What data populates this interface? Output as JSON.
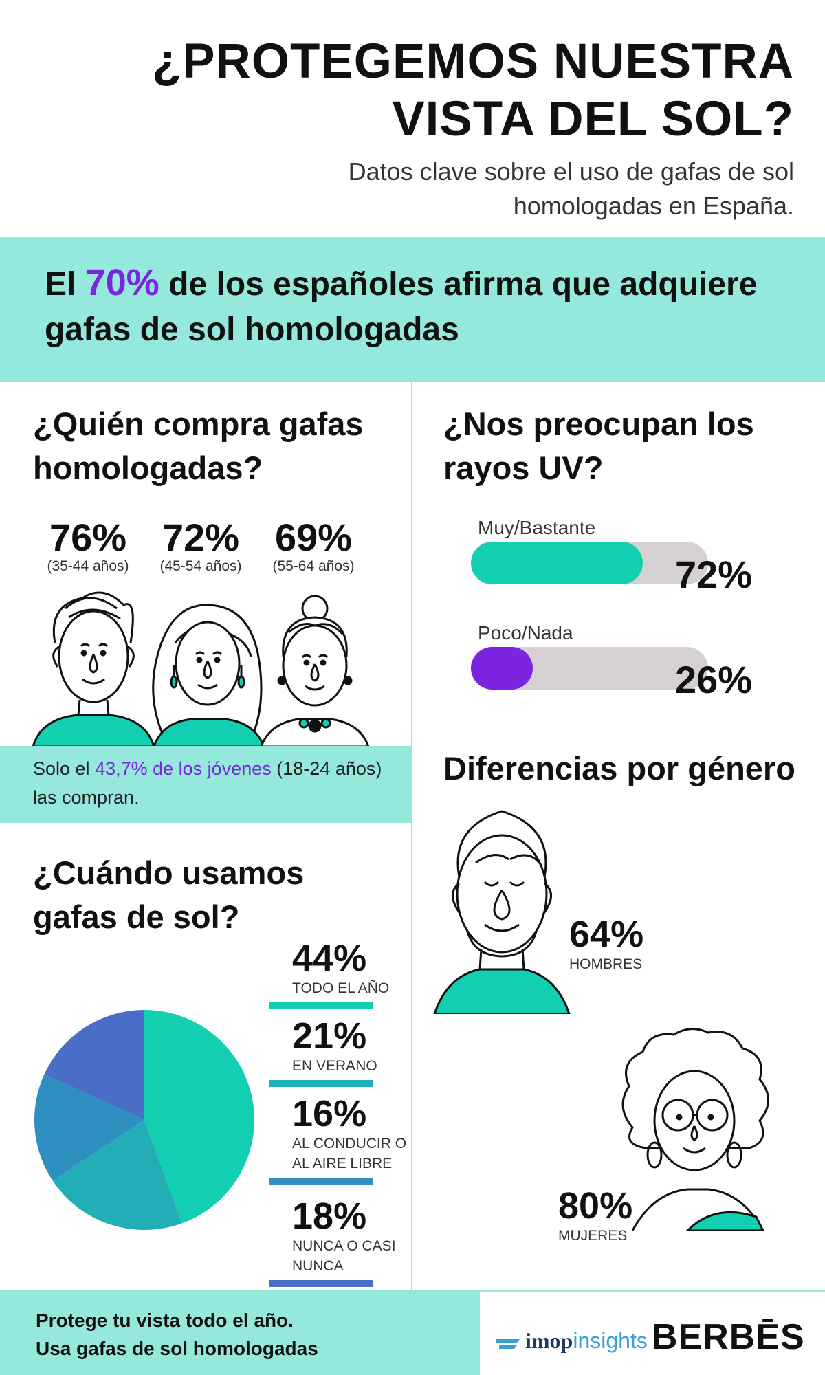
{
  "header": {
    "title_line1": "¿PROTEGEMOS NUESTRA",
    "title_line2": "VISTA DEL SOL?",
    "subtitle_line1": "Datos clave sobre el uso de gafas de sol",
    "subtitle_line2": "homologadas en España."
  },
  "hero": {
    "prefix": "El",
    "percent": "70%",
    "rest_line1": "de los españoles afirma que adquiere",
    "line2": "gafas de sol homologadas"
  },
  "who_buys": {
    "heading_line1": "¿Quién compra gafas",
    "heading_line2": "homologadas?",
    "groups": [
      {
        "value": "76%",
        "age": "(35-44 años)"
      },
      {
        "value": "72%",
        "age": "(45-54 años)"
      },
      {
        "value": "69%",
        "age": "(55-64 años)"
      }
    ],
    "youth_pre": "Solo el",
    "youth_highlight": "43,7% de los jóvenes",
    "youth_post": "(18-24 años)",
    "youth_line2": "las compran."
  },
  "uv": {
    "heading_line1": "¿Nos preocupan los",
    "heading_line2": "rayos UV?",
    "bars": [
      {
        "label": "Muy/Bastante",
        "value": "72%"
      },
      {
        "label": "Poco/Nada",
        "value": "26%"
      }
    ]
  },
  "gender": {
    "heading": "Diferencias por género",
    "men_value": "64%",
    "men_label": "HOMBRES",
    "women_value": "80%",
    "women_label": "MUJERES"
  },
  "when": {
    "heading_line1": "¿Cuándo usamos",
    "heading_line2": "gafas de sol?",
    "stats": [
      {
        "value": "44%",
        "label1": "TODO EL AÑO",
        "label2": ""
      },
      {
        "value": "21%",
        "label1": "EN VERANO",
        "label2": ""
      },
      {
        "value": "16%",
        "label1": "AL CONDUCIR O",
        "label2": "AL AIRE LIBRE"
      },
      {
        "value": "18%",
        "label1": "NUNCA O CASI",
        "label2": "NUNCA"
      }
    ]
  },
  "footer": {
    "line1": "Protege tu vista todo el año.",
    "line2": "Usa gafas de sol homologadas",
    "logo_imop": "imop",
    "logo_insights": "insights",
    "logo_berbes": "BERBĒS"
  },
  "colors": {
    "teal": "#13cfb2",
    "teal_light": "#95e8dc",
    "purple": "#7b25e0",
    "pie": [
      "#13cfb2",
      "#22aeb6",
      "#2f8fc0",
      "#4a6ec8"
    ]
  },
  "chart_data": [
    {
      "type": "bar",
      "title": "¿Quién compra gafas homologadas?",
      "categories": [
        "(35-44 años)",
        "(45-54 años)",
        "(55-64 años)"
      ],
      "values": [
        76,
        72,
        69
      ],
      "unit": "%"
    },
    {
      "type": "bar",
      "title": "¿Nos preocupan los rayos UV?",
      "categories": [
        "Muy/Bastante",
        "Poco/Nada"
      ],
      "values": [
        72,
        26
      ],
      "unit": "%",
      "xlim": [
        0,
        100
      ]
    },
    {
      "type": "bar",
      "title": "Diferencias por género",
      "categories": [
        "HOMBRES",
        "MUJERES"
      ],
      "values": [
        64,
        80
      ],
      "unit": "%"
    },
    {
      "type": "pie",
      "title": "¿Cuándo usamos gafas de sol?",
      "categories": [
        "TODO EL AÑO",
        "EN VERANO",
        "AL CONDUCIR O AL AIRE LIBRE",
        "NUNCA O CASI NUNCA"
      ],
      "values": [
        44,
        21,
        16,
        18
      ],
      "unit": "%"
    }
  ]
}
